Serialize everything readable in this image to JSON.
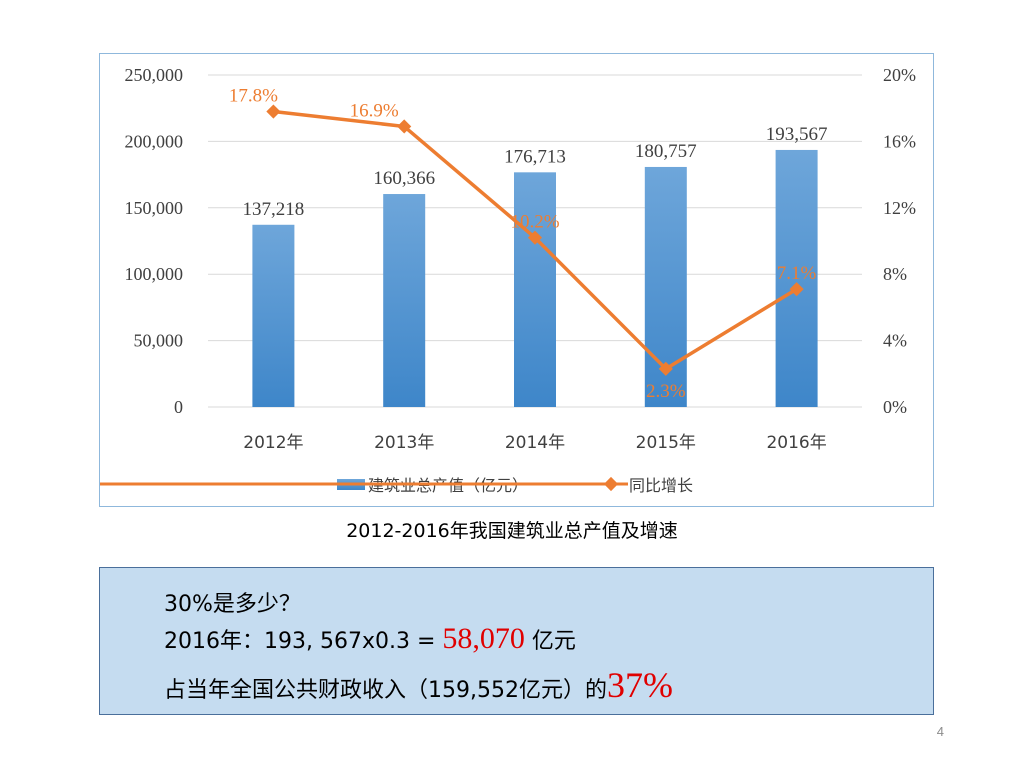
{
  "chart_data": {
    "type": "bar",
    "title": "",
    "categories": [
      "2012年",
      "2013年",
      "2014年",
      "2015年",
      "2016年"
    ],
    "series": [
      {
        "name": "建筑业总产值（亿元）",
        "type": "bar",
        "axis": "left",
        "values": [
          137218,
          160366,
          176713,
          180757,
          193567
        ],
        "labels": [
          "137,218",
          "160,366",
          "176,713",
          "180,757",
          "193,567"
        ]
      },
      {
        "name": "同比增长",
        "type": "line",
        "axis": "right",
        "values": [
          17.8,
          16.9,
          10.2,
          2.3,
          7.1
        ],
        "labels": [
          "17.8%",
          "16.9%",
          "10.2%",
          "2.3%",
          "7.1%"
        ]
      }
    ],
    "left_axis": {
      "min": 0,
      "max": 250000,
      "ticks": [
        0,
        50000,
        100000,
        150000,
        200000,
        250000
      ],
      "tick_labels": [
        "0",
        "50,000",
        "100,000",
        "150,000",
        "200,000",
        "250,000"
      ]
    },
    "right_axis": {
      "min": 0,
      "max": 20,
      "ticks": [
        0,
        4,
        8,
        12,
        16,
        20
      ],
      "tick_labels": [
        "0%",
        "4%",
        "8%",
        "12%",
        "16%",
        "20%"
      ]
    },
    "legend_position": "bottom",
    "colors": {
      "bar_top": "#6ea6da",
      "bar_bottom": "#3e86c9",
      "line": "#ed7d31",
      "grid": "#d9d9d9"
    }
  },
  "caption": {
    "year_range": "2012-2016",
    "text": "年我国建筑业总产值及增速"
  },
  "note": {
    "line1": "30%是多少？",
    "line2_prefix": "2016年：193, 567x0.3 = ",
    "line2_value": "58,070",
    "line2_suffix": " 亿元",
    "line3_prefix": "占当年全国公共财政收入（159,552亿元）的",
    "line3_value": "37%"
  },
  "page_number": "4"
}
